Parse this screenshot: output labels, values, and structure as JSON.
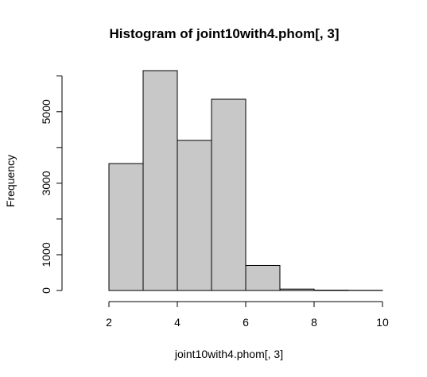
{
  "chart_data": {
    "type": "bar",
    "title": "Histogram of joint10with4.phom[, 3]",
    "xlabel": "joint10with4.phom[, 3]",
    "ylabel": "Frequency",
    "bins": [
      {
        "from": 1,
        "to": 2,
        "count": 0
      },
      {
        "from": 2,
        "to": 3,
        "count": 3550
      },
      {
        "from": 3,
        "to": 4,
        "count": 6150
      },
      {
        "from": 4,
        "to": 5,
        "count": 4200
      },
      {
        "from": 5,
        "to": 6,
        "count": 5350
      },
      {
        "from": 6,
        "to": 7,
        "count": 700
      },
      {
        "from": 7,
        "to": 8,
        "count": 40
      },
      {
        "from": 8,
        "to": 9,
        "count": 10
      },
      {
        "from": 9,
        "to": 10,
        "count": 5
      }
    ],
    "x_ticks": [
      2,
      4,
      6,
      8,
      10
    ],
    "x_tick_labels": [
      "2",
      "4",
      "6",
      "8",
      "10"
    ],
    "y_ticks": [
      0,
      1000,
      2000,
      3000,
      4000,
      5000,
      6000
    ],
    "y_tick_labels": [
      "0",
      "1000",
      "",
      "3000",
      "",
      "5000",
      ""
    ],
    "xlim": [
      1,
      10
    ],
    "ylim": [
      0,
      6150
    ],
    "grid": false,
    "colors": {
      "bar_fill": "#c8c8c8",
      "bar_stroke": "#000000",
      "axis": "#000000"
    }
  }
}
